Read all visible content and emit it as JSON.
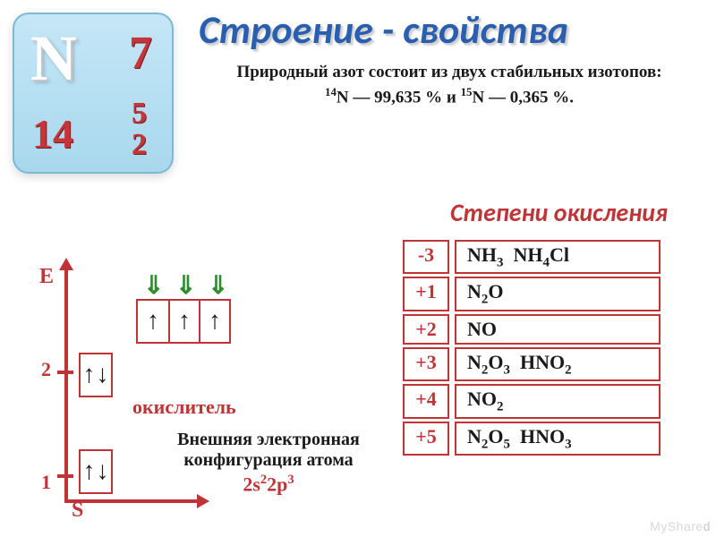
{
  "element_tile": {
    "symbol": "N",
    "atomic_number": "7",
    "mass_number": "14",
    "shell_top": "5",
    "shell_bottom": "2"
  },
  "title": "Строение - свойства",
  "intro": {
    "line1": "Природный азот состоит из двух стабильных изотопов:",
    "iso1_sup": "14",
    "iso1_sym": "N — 99,635 % и ",
    "iso2_sup": "15",
    "iso2_sym": "N — 0,365 %."
  },
  "oxidation_header": "Степени   окисления",
  "ox_rows": [
    {
      "state": "-3",
      "ex_html": "NH<sub>3</sub>&nbsp;&nbsp;NH<sub>4</sub>Cl"
    },
    {
      "state": "+1",
      "ex_html": "N<sub>2</sub>O"
    },
    {
      "state": "+2",
      "ex_html": "NO"
    },
    {
      "state": "+3",
      "ex_html": "N<sub>2</sub>O<sub>3</sub>&nbsp;&nbsp;HNO<sub>2</sub>"
    },
    {
      "state": "+4",
      "ex_html": "NO<sub>2</sub>"
    },
    {
      "state": "+5",
      "ex_html": "N<sub>2</sub>O<sub>5</sub>&nbsp;&nbsp;HNO<sub>3</sub>"
    }
  ],
  "diagram": {
    "E": "E",
    "S": "S",
    "level1": "1",
    "level2": "2",
    "oxidizer_label": "окислитель"
  },
  "config": {
    "label": "Внешняя электронная конфигурация атома",
    "formula_html": "2s<sup>2</sup>2p<sup>3</sup>"
  },
  "watermark": {
    "a": "MyShare",
    "b": "d"
  }
}
